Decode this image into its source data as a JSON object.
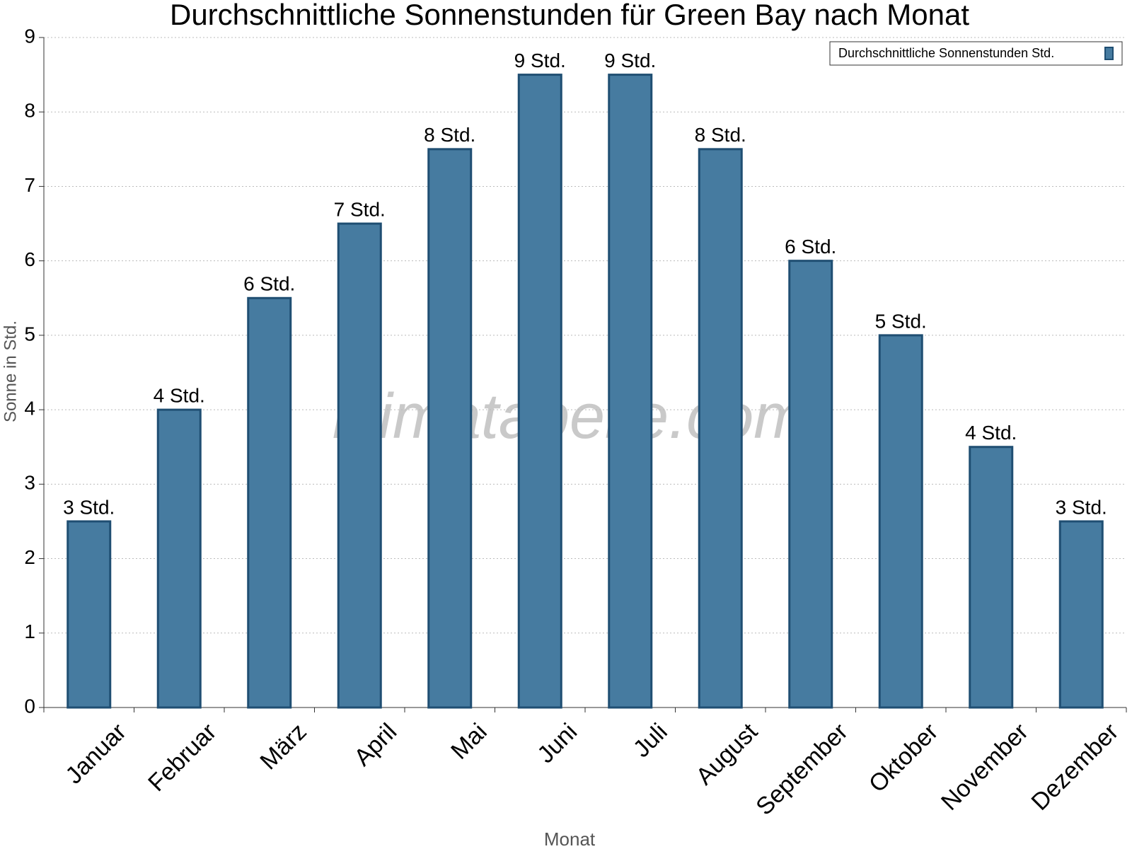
{
  "chart_data": {
    "type": "bar",
    "title": "Durchschnittliche Sonnenstunden für Green Bay nach Monat",
    "watermark": "klimatabelle.com",
    "x_label": "Monat",
    "y_label": "Sonne in Std.",
    "categories": [
      "Januar",
      "Februar",
      "März",
      "April",
      "Mai",
      "Juni",
      "Juli",
      "August",
      "September",
      "Oktober",
      "November",
      "Dezember"
    ],
    "series": [
      {
        "name": "Durchschnittliche Sonnenstunden Std.",
        "color": "#467ba0",
        "values": [
          2.5,
          4,
          5.5,
          6.5,
          7.5,
          8.5,
          8.5,
          7.5,
          6,
          5,
          3.5,
          2.5
        ],
        "value_labels": [
          "3 Std.",
          "4 Std.",
          "6 Std.",
          "7 Std.",
          "8 Std.",
          "9 Std.",
          "9 Std.",
          "8 Std.",
          "6 Std.",
          "5 Std.",
          "4 Std.",
          "3 Std."
        ]
      }
    ],
    "ylim": [
      0,
      9
    ],
    "yticks": [
      0,
      1,
      2,
      3,
      4,
      5,
      6,
      7,
      8,
      9
    ],
    "grid": true,
    "legend": "upper right"
  }
}
